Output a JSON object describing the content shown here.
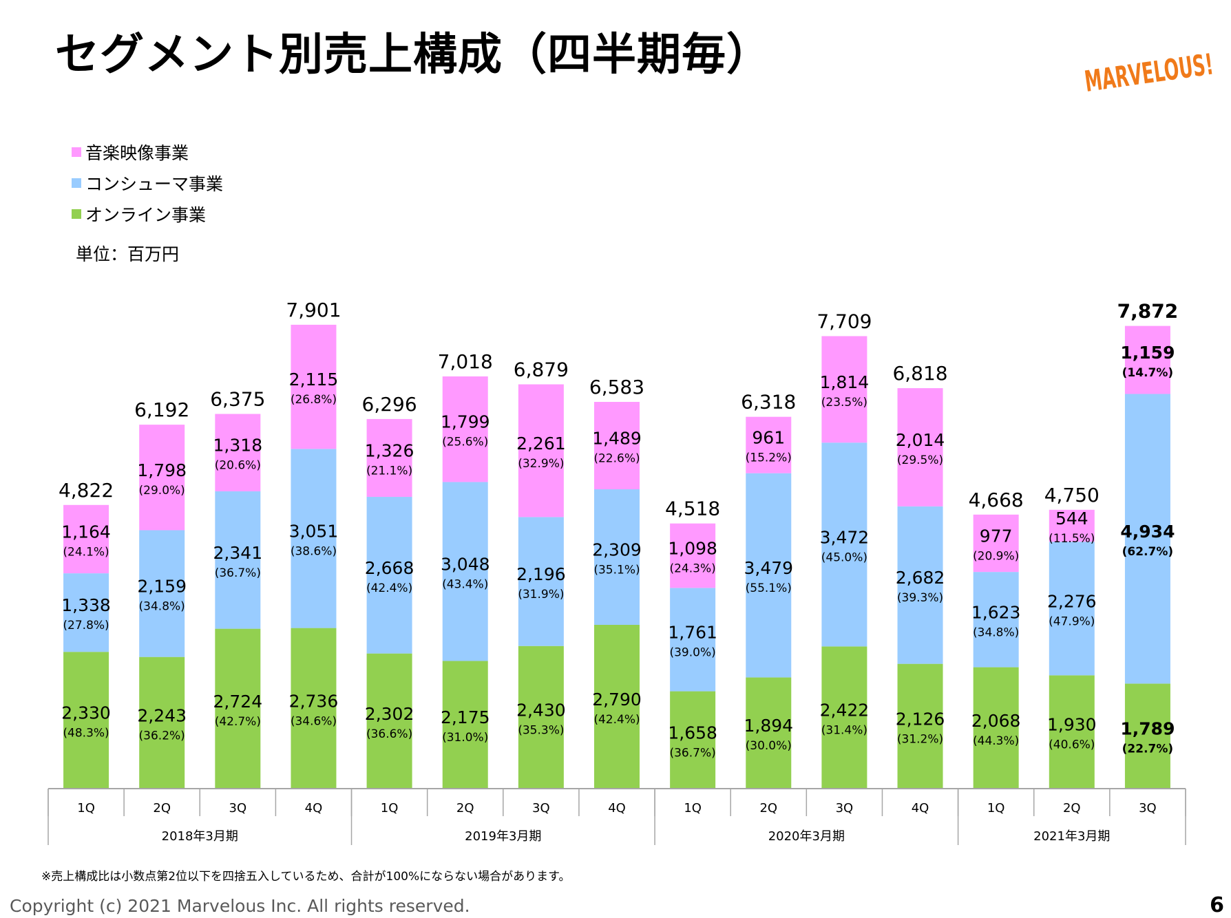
{
  "page": {
    "title": "セグメント別売上構成（四半期毎）",
    "logo_text": "MARVELOUS!",
    "unit": "単位：百万円",
    "footnote": "※売上構成比は小数点第2位以下を四捨五入しているため、合計が100%にならない場合があります。",
    "copyright": "Copyright (c) 2021 Marvelous Inc. All rights reserved.",
    "page_number": "6"
  },
  "colors": {
    "music": "#ff99ff",
    "consumer": "#99ccff",
    "online": "#92d050",
    "logo": "#f07a1a",
    "axis": "#a6a6a6"
  },
  "chart_data": {
    "type": "bar",
    "stacked": true,
    "legend_position": "top-left",
    "categories": [
      "1Q",
      "2Q",
      "3Q",
      "4Q",
      "1Q",
      "2Q",
      "3Q",
      "4Q",
      "1Q",
      "2Q",
      "3Q",
      "4Q",
      "1Q",
      "2Q",
      "3Q"
    ],
    "groups": [
      {
        "label": "2018年3月期",
        "count": 4
      },
      {
        "label": "2019年3月期",
        "count": 4
      },
      {
        "label": "2020年3月期",
        "count": 4
      },
      {
        "label": "2021年3月期",
        "count": 3
      }
    ],
    "series": [
      {
        "name": "オンライン事業",
        "color": "#92d050",
        "values": [
          2330,
          2243,
          2724,
          2736,
          2302,
          2175,
          2430,
          2790,
          1658,
          1894,
          2422,
          2126,
          2068,
          1930,
          1789
        ],
        "labels": [
          "2,330",
          "2,243",
          "2,724",
          "2,736",
          "2,302",
          "2,175",
          "2,430",
          "2,790",
          "1,658",
          "1,894",
          "2,422",
          "2,126",
          "2,068",
          "1,930",
          "1,789"
        ],
        "percents": [
          "(48.3%)",
          "(36.2%)",
          "(42.7%)",
          "(34.6%)",
          "(36.6%)",
          "(31.0%)",
          "(35.3%)",
          "(42.4%)",
          "(36.7%)",
          "(30.0%)",
          "(31.4%)",
          "(31.2%)",
          "(44.3%)",
          "(40.6%)",
          "(22.7%)"
        ]
      },
      {
        "name": "コンシューマ事業",
        "color": "#99ccff",
        "values": [
          1338,
          2159,
          2341,
          3051,
          2668,
          3048,
          2196,
          2309,
          1761,
          3479,
          3472,
          2682,
          1623,
          2276,
          4934
        ],
        "labels": [
          "1,338",
          "2,159",
          "2,341",
          "3,051",
          "2,668",
          "3,048",
          "2,196",
          "2,309",
          "1,761",
          "3,479",
          "3,472",
          "2,682",
          "1,623",
          "2,276",
          "4,934"
        ],
        "percents": [
          "(27.8%)",
          "(34.8%)",
          "(36.7%)",
          "(38.6%)",
          "(42.4%)",
          "(43.4%)",
          "(31.9%)",
          "(35.1%)",
          "(39.0%)",
          "(55.1%)",
          "(45.0%)",
          "(39.3%)",
          "(34.8%)",
          "(47.9%)",
          "(62.7%)"
        ]
      },
      {
        "name": "音楽映像事業",
        "color": "#ff99ff",
        "values": [
          1164,
          1798,
          1318,
          2115,
          1326,
          1799,
          2261,
          1489,
          1098,
          961,
          1814,
          2014,
          977,
          544,
          1159
        ],
        "labels": [
          "1,164",
          "1,798",
          "1,318",
          "2,115",
          "1,326",
          "1,799",
          "2,261",
          "1,489",
          "1,098",
          "961",
          "1,814",
          "2,014",
          "977",
          "544",
          "1,159"
        ],
        "percents": [
          "(24.1%)",
          "(29.0%)",
          "(20.6%)",
          "(26.8%)",
          "(21.1%)",
          "(25.6%)",
          "(32.9%)",
          "(22.6%)",
          "(24.3%)",
          "(15.2%)",
          "(23.5%)",
          "(29.5%)",
          "(20.9%)",
          "(11.5%)",
          "(14.7%)"
        ]
      }
    ],
    "totals": [
      4822,
      6192,
      6375,
      7901,
      6296,
      7018,
      6879,
      6583,
      4518,
      6318,
      7709,
      6818,
      4668,
      4750,
      7872
    ],
    "total_labels": [
      "4,822",
      "6,192",
      "6,375",
      "7,901",
      "6,296",
      "7,018",
      "6,879",
      "6,583",
      "4,518",
      "6,318",
      "7,709",
      "6,818",
      "4,668",
      "4,750",
      "7,872"
    ],
    "highlight_index": 14,
    "ylim": [
      0,
      7901
    ],
    "grid": false
  }
}
